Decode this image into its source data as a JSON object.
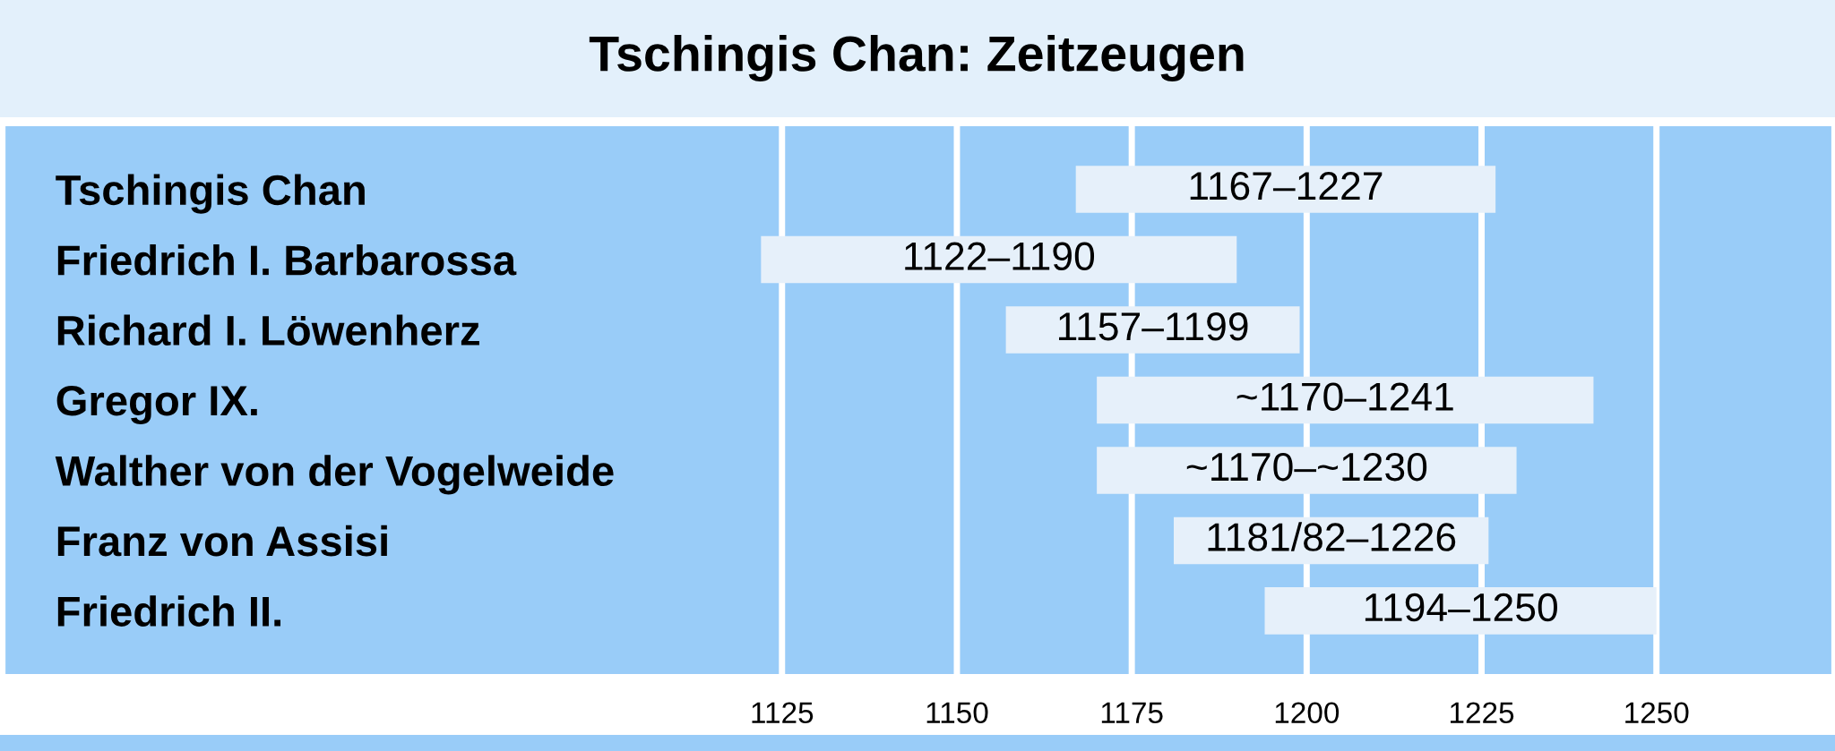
{
  "chart_data": {
    "type": "bar",
    "orientation": "horizontal",
    "title": "Tschingis Chan: Zeitzeugen",
    "categories": [
      "Tschingis Chan",
      "Friedrich I. Barbarossa",
      "Richard I. Löwenherz",
      "Gregor IX.",
      "Walther von der Vogelweide",
      "Franz von Assisi",
      "Friedrich II."
    ],
    "base": [
      1167,
      1122,
      1157,
      1170,
      1170,
      1181,
      1194
    ],
    "values": [
      60,
      68,
      42,
      71,
      60,
      45,
      56
    ],
    "value_labels": [
      "1167–1227",
      "1122–1190",
      "1157–1199",
      "~1170–1241",
      "~1170–~1230",
      "1181/82–1226",
      "1194–1250"
    ],
    "color": "#e6f0fa",
    "xlim": [
      1014,
      1275
    ],
    "xticks": [
      1125,
      1150,
      1175,
      1200,
      1225,
      1250
    ],
    "grid": "x"
  }
}
